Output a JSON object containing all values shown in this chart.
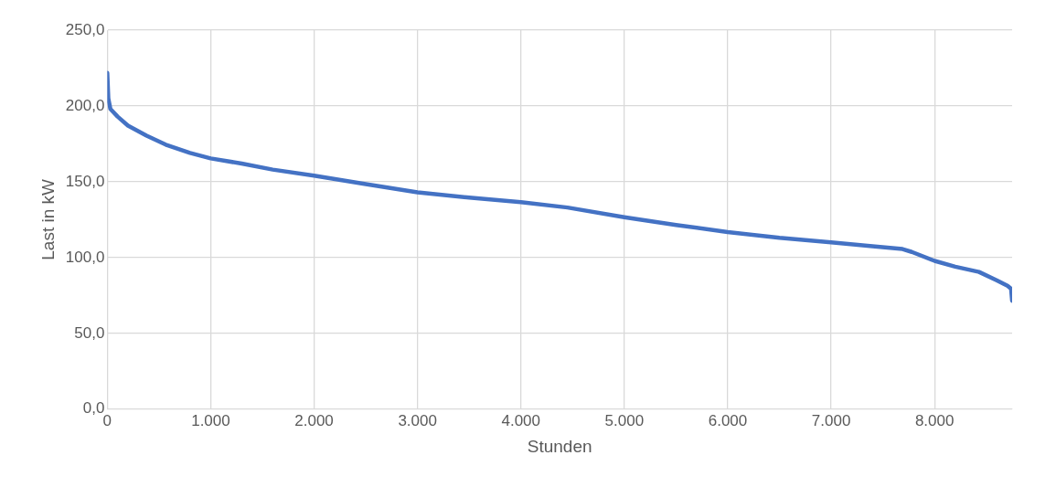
{
  "chart_data": {
    "type": "line",
    "xlabel": "Stunden",
    "ylabel": "Last in kW",
    "x": [
      0,
      10,
      30,
      100,
      200,
      380,
      565,
      800,
      1000,
      1300,
      1600,
      2000,
      2500,
      3000,
      3500,
      4000,
      4450,
      5000,
      5500,
      6000,
      6500,
      7000,
      7400,
      7690,
      7780,
      8000,
      8200,
      8430,
      8600,
      8705,
      8740,
      8750
    ],
    "series": [
      {
        "color": "#4472c4",
        "values": [
          221.8,
          205,
          198,
          193,
          187,
          180.4,
          174.5,
          169,
          165.4,
          162,
          158,
          154,
          148.5,
          143,
          139.5,
          136.5,
          133,
          126.6,
          121.5,
          116.8,
          113,
          110,
          107.5,
          105.6,
          103.7,
          97.8,
          94,
          90.5,
          85,
          81.4,
          79.4,
          71.5
        ]
      }
    ],
    "xlim": [
      0,
      8750
    ],
    "xticks": [
      0,
      {
        "value": 1000,
        "label": "1.000"
      },
      {
        "value": 2000,
        "label": "2.000"
      },
      {
        "value": 3000,
        "label": "3.000"
      },
      {
        "value": 4000,
        "label": "4.000"
      },
      {
        "value": 5000,
        "label": "5.000"
      },
      {
        "value": 6000,
        "label": "6.000"
      },
      {
        "value": 7000,
        "label": "7.000"
      },
      {
        "value": 8000,
        "label": "8.000"
      }
    ],
    "ylim": [
      0,
      250
    ],
    "yticks": [
      {
        "value": 0,
        "label": "0,0"
      },
      {
        "value": 50,
        "label": "50,0"
      },
      {
        "value": 100,
        "label": "100,0"
      },
      {
        "value": 150,
        "label": "150,0"
      },
      {
        "value": 200,
        "label": "200,0"
      },
      {
        "value": 250,
        "label": "250,0"
      }
    ],
    "grid": true,
    "legend": false,
    "marker": "none",
    "line_style": "solid"
  }
}
